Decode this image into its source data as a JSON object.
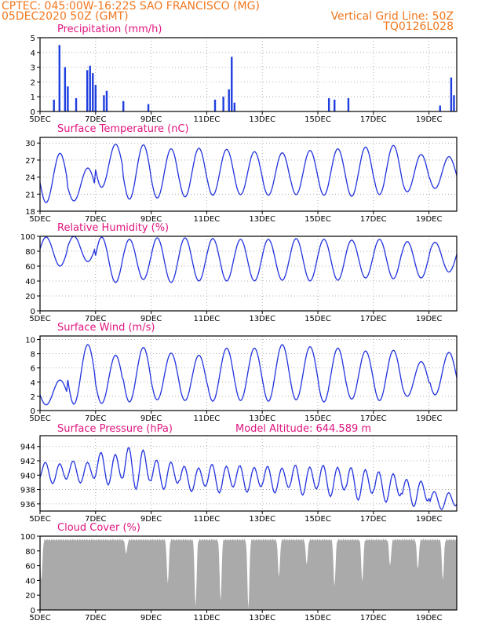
{
  "header": {
    "line1": "CPTEC:   045:00W-16:22S   SAO FRANCISCO (MG)",
    "line2": "05DEC2020 50Z (GMT)",
    "grid_note": "Vertical Grid Line: 50Z",
    "code": "TQ0126L028"
  },
  "x_axis": {
    "ticks": [
      "5DEC",
      "7DEC",
      "9DEC",
      "11DEC",
      "13DEC",
      "15DEC",
      "17DEC",
      "19DEC"
    ],
    "range_days": [
      5,
      20
    ]
  },
  "colors": {
    "line": "#2233dd",
    "bar": "#1f3ee0",
    "cloud": "#aaaaaa",
    "grid": "#999999",
    "title": "#e0157f",
    "header": "#f07820"
  },
  "chart_data": [
    {
      "type": "bar",
      "title": "Precipitation (mm/h)",
      "yticks": [
        "0",
        "1",
        "2",
        "3",
        "4",
        "5"
      ],
      "ylim": [
        0,
        5
      ],
      "grid": true,
      "events": [
        {
          "x": 5.5,
          "value": 0.8
        },
        {
          "x": 5.7,
          "value": 4.5
        },
        {
          "x": 5.9,
          "value": 3.0
        },
        {
          "x": 6.0,
          "value": 1.7
        },
        {
          "x": 6.3,
          "value": 0.9
        },
        {
          "x": 6.7,
          "value": 2.8
        },
        {
          "x": 6.8,
          "value": 3.1
        },
        {
          "x": 6.9,
          "value": 2.6
        },
        {
          "x": 7.0,
          "value": 1.8
        },
        {
          "x": 7.3,
          "value": 1.1
        },
        {
          "x": 7.4,
          "value": 1.4
        },
        {
          "x": 8.0,
          "value": 0.7
        },
        {
          "x": 8.9,
          "value": 0.5
        },
        {
          "x": 11.3,
          "value": 0.8
        },
        {
          "x": 11.6,
          "value": 1.0
        },
        {
          "x": 11.8,
          "value": 1.5
        },
        {
          "x": 11.9,
          "value": 3.7
        },
        {
          "x": 12.0,
          "value": 0.6
        },
        {
          "x": 15.4,
          "value": 0.9
        },
        {
          "x": 15.6,
          "value": 0.8
        },
        {
          "x": 16.1,
          "value": 0.9
        },
        {
          "x": 19.4,
          "value": 0.4
        },
        {
          "x": 19.8,
          "value": 2.3
        },
        {
          "x": 19.9,
          "value": 1.1
        }
      ]
    },
    {
      "type": "line",
      "title": "Surface Temperature (nC)",
      "yticks": [
        "18",
        "21",
        "24",
        "27",
        "30"
      ],
      "ylim": [
        18,
        31
      ],
      "grid": true,
      "daily_max": [
        28.2,
        25.6,
        29.8,
        29.7,
        29.0,
        29.1,
        28.9,
        28.5,
        28.3,
        28.7,
        29.0,
        29.3,
        29.6,
        28.0,
        27.6
      ],
      "daily_min": [
        19.5,
        19.8,
        22.2,
        20.1,
        20.3,
        20.5,
        20.8,
        20.9,
        20.8,
        20.9,
        20.8,
        20.6,
        20.9,
        21.4,
        22.0
      ]
    },
    {
      "type": "line",
      "title": "Relative Humidity (%)",
      "yticks": [
        "0",
        "20",
        "40",
        "60",
        "80",
        "100"
      ],
      "ylim": [
        0,
        100
      ],
      "grid": true,
      "daily_max": [
        99,
        100,
        99,
        96,
        98,
        98,
        97,
        96,
        96,
        97,
        96,
        95,
        96,
        93,
        92
      ],
      "daily_min": [
        60,
        66,
        38,
        42,
        38,
        40,
        40,
        40,
        41,
        40,
        41,
        44,
        43,
        44,
        52
      ]
    },
    {
      "type": "line",
      "title": "Surface Wind (m/s)",
      "yticks": [
        "0",
        "2",
        "4",
        "6",
        "8",
        "10"
      ],
      "ylim": [
        0,
        10.5
      ],
      "grid": true,
      "daily_max": [
        4.3,
        9.3,
        7.8,
        8.9,
        8.1,
        7.8,
        8.8,
        8.8,
        9.3,
        9.0,
        8.8,
        8.4,
        8.5,
        6.9,
        8.2
      ],
      "daily_min": [
        0.8,
        0.9,
        1.0,
        1.2,
        1.5,
        1.4,
        1.3,
        1.4,
        1.3,
        1.5,
        1.2,
        1.6,
        1.4,
        2.0,
        2.2
      ]
    },
    {
      "type": "line",
      "title": "Surface Pressure (hPa)",
      "annotation": "Model Altitude: 644.589  m",
      "yticks": [
        "936",
        "938",
        "940",
        "942",
        "944"
      ],
      "ylim": [
        935,
        945.5
      ],
      "grid": true,
      "daily_max": [
        942.0,
        942.2,
        943.5,
        944.3,
        942.4,
        941.5,
        941.8,
        941.6,
        941.5,
        941.7,
        941.7,
        941.4,
        940.8,
        939.7,
        937.9
      ],
      "daily_min": [
        938.8,
        938.9,
        938.6,
        938.0,
        938.0,
        937.7,
        937.5,
        937.6,
        937.5,
        937.2,
        937.0,
        936.5,
        936.2,
        935.6,
        935.2
      ]
    },
    {
      "type": "area",
      "title": "Cloud Cover (%)",
      "yticks": [
        "0",
        "20",
        "40",
        "60",
        "80",
        "100"
      ],
      "ylim": [
        0,
        100
      ],
      "grid": false,
      "typical_value": 97,
      "dips": [
        {
          "x": 5.05,
          "value": 40
        },
        {
          "x": 8.1,
          "value": 76
        },
        {
          "x": 9.6,
          "value": 36
        },
        {
          "x": 10.6,
          "value": 5
        },
        {
          "x": 11.5,
          "value": 12
        },
        {
          "x": 12.5,
          "value": 2
        },
        {
          "x": 13.6,
          "value": 45
        },
        {
          "x": 14.6,
          "value": 62
        },
        {
          "x": 15.6,
          "value": 32
        },
        {
          "x": 16.6,
          "value": 38
        },
        {
          "x": 17.6,
          "value": 60
        },
        {
          "x": 18.6,
          "value": 55
        },
        {
          "x": 19.5,
          "value": 40
        }
      ]
    }
  ]
}
